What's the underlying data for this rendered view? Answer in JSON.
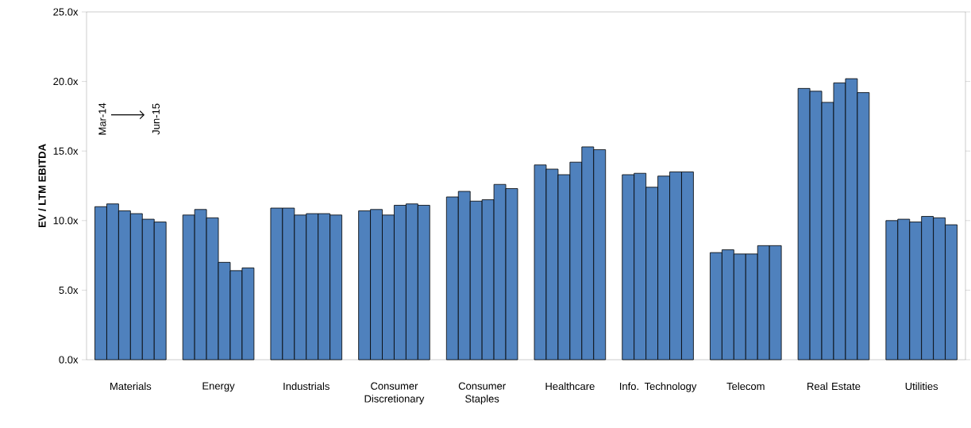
{
  "chart_data": {
    "type": "bar",
    "ylabel": "EV / LTM EBITDA",
    "categories": [
      "Materials",
      "Energy",
      "Industrials",
      "Consumer Discretionary",
      "Consumer Staples",
      "Healthcare",
      "Info. Technology",
      "Telecom",
      "Real Estate",
      "Utilities"
    ],
    "series": [
      {
        "color": "#4f81bd",
        "values": [
          11.0,
          10.4,
          10.9,
          10.7,
          11.7,
          14.0,
          13.3,
          7.7,
          19.5,
          10.0
        ]
      },
      {
        "color": "#4f81bd",
        "values": [
          11.2,
          10.8,
          10.9,
          10.8,
          12.1,
          13.7,
          13.4,
          7.9,
          19.3,
          10.1
        ]
      },
      {
        "color": "#4f81bd",
        "values": [
          10.7,
          10.2,
          10.4,
          10.4,
          11.4,
          13.3,
          12.4,
          7.6,
          18.5,
          9.9
        ]
      },
      {
        "color": "#4f81bd",
        "values": [
          10.5,
          7.0,
          10.5,
          11.1,
          11.5,
          14.2,
          13.2,
          7.6,
          19.9,
          10.3
        ]
      },
      {
        "color": "#4f81bd",
        "values": [
          10.1,
          6.4,
          10.5,
          11.2,
          12.6,
          15.3,
          13.5,
          8.2,
          20.2,
          10.2
        ]
      },
      {
        "color": "#4f81bd",
        "values": [
          9.9,
          6.6,
          10.4,
          11.1,
          12.3,
          15.1,
          13.5,
          8.2,
          19.2,
          9.7
        ]
      }
    ],
    "ylim": [
      0,
      25
    ],
    "yticks": [
      {
        "value": 0,
        "label": "0.0x"
      },
      {
        "value": 5,
        "label": "5.0x"
      },
      {
        "value": 10,
        "label": "10.0x"
      },
      {
        "value": 15,
        "label": "15.0x"
      },
      {
        "value": 20,
        "label": "20.0x"
      },
      {
        "value": 25,
        "label": "25.0x"
      }
    ],
    "annotations": [
      "Mar-14",
      "Jun-15"
    ],
    "grid": false
  }
}
